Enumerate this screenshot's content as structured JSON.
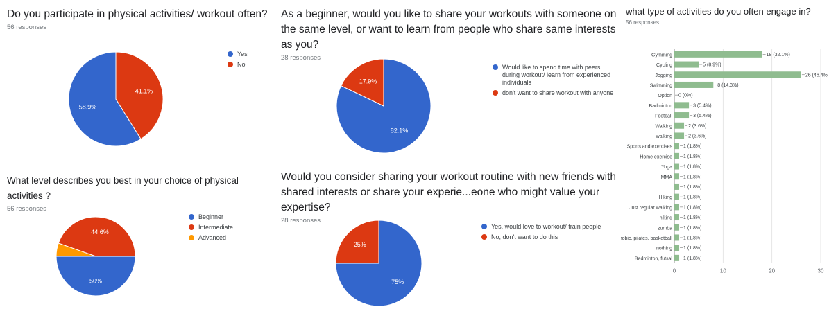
{
  "chart_data": [
    {
      "type": "pie",
      "title": "Do you participate in physical activities/ workout often?",
      "subtitle": "56 responses",
      "legend_placement": "right",
      "slices": [
        {
          "label": "Yes",
          "value": 58.9,
          "display": "58.9%",
          "color": "#3366cc"
        },
        {
          "label": "No",
          "value": 41.1,
          "display": "41.1%",
          "color": "#dc3912"
        }
      ]
    },
    {
      "type": "pie",
      "title": "As a beginner, would you like to share your workouts with someone on the same level, or want to learn from people who share same interests as you?",
      "subtitle": "28 responses",
      "legend_placement": "right",
      "slices": [
        {
          "label": "Would like to spend time with peers during workout/ learn from experienced individuals",
          "value": 82.1,
          "display": "82.1%",
          "color": "#3366cc"
        },
        {
          "label": "don't want to share workout with anyone",
          "value": 17.9,
          "display": "17.9%",
          "color": "#dc3912"
        }
      ]
    },
    {
      "type": "pie",
      "title": "What level describes you best in your choice of physical activities ?",
      "subtitle": "56 responses",
      "legend_placement": "right",
      "slices": [
        {
          "label": "Beginner",
          "value": 50,
          "display": "50%",
          "color": "#3366cc"
        },
        {
          "label": "Intermediate",
          "value": 44.6,
          "display": "44.6%",
          "color": "#dc3912"
        },
        {
          "label": "Advanced",
          "value": 5.4,
          "display": "",
          "color": "#ff9900"
        }
      ]
    },
    {
      "type": "pie",
      "title": "Would you consider sharing your workout routine with new friends with shared interests or share your experie...eone who might value your expertise?",
      "subtitle": "28 responses",
      "legend_placement": "right",
      "slices": [
        {
          "label": "Yes, would love to workout/ train people",
          "value": 75,
          "display": "75%",
          "color": "#3366cc"
        },
        {
          "label": "No, don't want to do this",
          "value": 25,
          "display": "25%",
          "color": "#dc3912"
        }
      ]
    },
    {
      "type": "bar",
      "orientation": "horizontal",
      "title": "what type of activities do you often engage in?",
      "subtitle": "56 responses",
      "bar_color": "#8fbc8f",
      "xlim": [
        0,
        30
      ],
      "xticks": [
        0,
        10,
        20,
        30
      ],
      "grid": true,
      "categories": [
        "Gymming",
        "Cycling",
        "Jogging",
        "Swimming",
        "Option",
        "Badminton",
        "Football",
        "Walking",
        "walking",
        "Sports and exercises",
        "Home exercise",
        "Yoga",
        "MMA",
        "",
        "Hiking",
        "Just regular walking",
        "hiking",
        "zumba",
        "Aerobic, pilates, basketball",
        "nothing",
        "Badminton, futsal"
      ],
      "values": [
        18,
        5,
        26,
        8,
        0,
        3,
        3,
        2,
        2,
        1,
        1,
        1,
        1,
        1,
        1,
        1,
        1,
        1,
        1,
        1,
        1
      ],
      "labels": [
        "18 (32.1%)",
        "5 (8.9%)",
        "26 (46.4%)",
        "8 (14.3%)",
        "0 (0%)",
        "3 (5.4%)",
        "3 (5.4%)",
        "2 (3.6%)",
        "2 (3.6%)",
        "1 (1.8%)",
        "1 (1.8%)",
        "1 (1.8%)",
        "1 (1.8%)",
        "1 (1.8%)",
        "1 (1.8%)",
        "1 (1.8%)",
        "1 (1.8%)",
        "1 (1.8%)",
        "1 (1.8%)",
        "1 (1.8%)",
        "1 (1.8%)"
      ]
    }
  ]
}
